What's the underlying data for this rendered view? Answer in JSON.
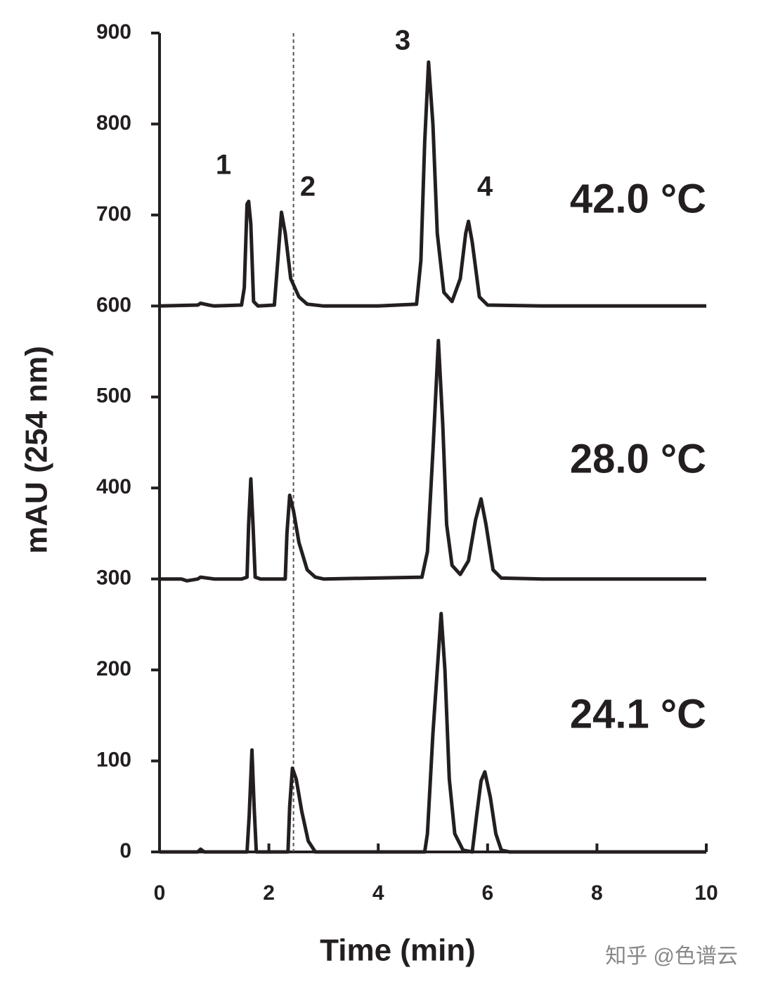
{
  "chart_data": {
    "type": "line",
    "xlabel": "Time (min)",
    "ylabel": "mAU (254 nm)",
    "xlim": [
      0,
      10
    ],
    "xticks": [
      0,
      2,
      4,
      6,
      8,
      10
    ],
    "ylim": [
      0,
      900
    ],
    "yticks": [
      0,
      100,
      200,
      300,
      400,
      500,
      600,
      700,
      800,
      900
    ],
    "reference_line_x": 2.45,
    "peak_labels": [
      "1",
      "2",
      "3",
      "4"
    ],
    "temperature_labels": [
      "42.0 °C",
      "28.0 °C",
      "24.1 °C"
    ],
    "watermark": "知乎 @色谱云",
    "series": [
      {
        "color": "#231f20",
        "x": [
          0,
          0.7,
          0.75,
          0.9,
          1.0,
          1.5,
          1.55,
          1.6,
          1.63,
          1.67,
          1.72,
          1.8,
          2.1,
          2.15,
          2.23,
          2.3,
          2.4,
          2.55,
          2.7,
          3.0,
          4.0,
          4.7,
          4.78,
          4.85,
          4.92,
          5.0,
          5.08,
          5.2,
          5.35,
          5.5,
          5.6,
          5.65,
          5.72,
          5.85,
          6.0,
          7.0,
          10
        ],
        "values": [
          600,
          601,
          603,
          601,
          600,
          601,
          620,
          712,
          715,
          690,
          605,
          600,
          601,
          640,
          703,
          680,
          630,
          610,
          602,
          600,
          600,
          602,
          650,
          780,
          868,
          800,
          680,
          615,
          605,
          630,
          680,
          693,
          670,
          610,
          601,
          600,
          600
        ]
      },
      {
        "color": "#231f20",
        "x": [
          0,
          0.4,
          0.5,
          0.7,
          0.75,
          1.0,
          1.5,
          1.6,
          1.63,
          1.67,
          1.71,
          1.75,
          1.85,
          2.3,
          2.33,
          2.38,
          2.45,
          2.55,
          2.7,
          2.85,
          3.0,
          4.8,
          4.9,
          5.0,
          5.1,
          5.18,
          5.25,
          5.35,
          5.5,
          5.65,
          5.78,
          5.88,
          5.97,
          6.1,
          6.25,
          7,
          10
        ],
        "values": [
          300,
          300,
          298,
          300,
          302,
          300,
          300,
          302,
          360,
          410,
          360,
          302,
          300,
          300,
          350,
          392,
          375,
          340,
          310,
          302,
          300,
          302,
          330,
          440,
          562,
          470,
          360,
          315,
          305,
          320,
          365,
          388,
          360,
          310,
          301,
          300,
          300
        ]
      },
      {
        "color": "#231f20",
        "x": [
          0,
          0.7,
          0.75,
          0.82,
          1.6,
          1.64,
          1.69,
          1.73,
          1.77,
          2.35,
          2.38,
          2.43,
          2.5,
          2.6,
          2.72,
          2.85,
          4.85,
          4.9,
          5.0,
          5.15,
          5.22,
          5.3,
          5.4,
          5.55,
          5.72,
          5.8,
          5.88,
          5.95,
          6.05,
          6.15,
          6.25,
          6.4,
          10
        ],
        "values": [
          0,
          0,
          3,
          0,
          0,
          40,
          112,
          50,
          0,
          0,
          50,
          92,
          80,
          45,
          12,
          0,
          0,
          20,
          130,
          262,
          200,
          80,
          20,
          2,
          0,
          40,
          78,
          88,
          60,
          20,
          2,
          0,
          0
        ]
      }
    ]
  }
}
